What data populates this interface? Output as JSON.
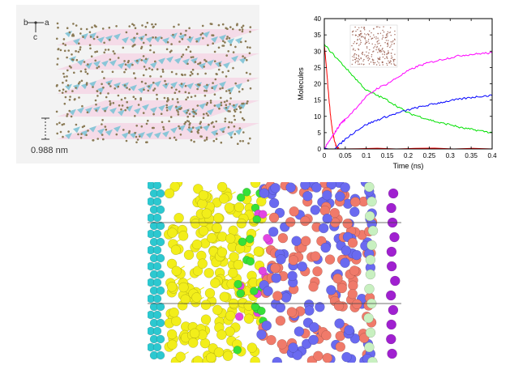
{
  "figure": {
    "panel_a": {
      "axis_labels": {
        "b": "b",
        "a": "a",
        "c": "c"
      },
      "scale_label": "0.988 nm",
      "layer_color": "#7ec3d6",
      "sheet_color": "#f5c6df",
      "atom_color": "#8a7a55"
    },
    "panel_b": {
      "inset_color": "#a0685a"
    },
    "panel_c": {
      "colors": {
        "cyan": "#2cc8d0",
        "yellow": "#f2ee1a",
        "green": "#36e038",
        "magenta": "#e246e2",
        "salmon": "#f07a6a",
        "blue": "#6a6af0",
        "pale_green": "#c8f0c0",
        "purple": "#a020d0"
      }
    }
  },
  "chart_data": {
    "type": "line",
    "xlabel": "Time (ns)",
    "ylabel": "Molecules",
    "xlim": [
      0,
      0.4
    ],
    "ylim": [
      0,
      40
    ],
    "x_ticks": [
      "0",
      "0.05",
      "0.1",
      "0.15",
      "0.2",
      "0.25",
      "0.3",
      "0.35",
      "0.4"
    ],
    "y_ticks": [
      "0",
      "5",
      "10",
      "15",
      "20",
      "25",
      "30",
      "35",
      "40"
    ],
    "series": [
      {
        "color": "#ff0000",
        "x": [
          0,
          0.005,
          0.01,
          0.015,
          0.02,
          0.025,
          0.03,
          0.035,
          0.4
        ],
        "y": [
          32,
          25,
          17,
          10,
          5,
          2,
          0.5,
          0,
          0
        ]
      },
      {
        "color": "#00e000",
        "x": [
          0,
          0.025,
          0.05,
          0.075,
          0.1,
          0.125,
          0.15,
          0.175,
          0.2,
          0.225,
          0.25,
          0.275,
          0.3,
          0.325,
          0.35,
          0.375,
          0.4
        ],
        "y": [
          32,
          28.5,
          25,
          21.5,
          18,
          16.5,
          15,
          13,
          11,
          10,
          9,
          8,
          7.5,
          6.5,
          6,
          5.5,
          5
        ]
      },
      {
        "color": "#ff00ff",
        "x": [
          0,
          0.01,
          0.02,
          0.03,
          0.04,
          0.05,
          0.075,
          0.1,
          0.125,
          0.15,
          0.175,
          0.2,
          0.225,
          0.25,
          0.275,
          0.3,
          0.325,
          0.35,
          0.375,
          0.4
        ],
        "y": [
          0,
          2,
          4,
          6,
          8,
          9,
          12.5,
          16,
          18.5,
          20,
          22,
          24,
          25.5,
          26.5,
          27.3,
          28,
          28.7,
          29,
          29.3,
          29.5
        ]
      },
      {
        "color": "#0000ff",
        "x": [
          0,
          0.025,
          0.05,
          0.075,
          0.1,
          0.125,
          0.15,
          0.175,
          0.2,
          0.225,
          0.25,
          0.275,
          0.3,
          0.325,
          0.35,
          0.375,
          0.4
        ],
        "y": [
          0,
          0,
          3,
          5.5,
          7.5,
          8.8,
          10,
          11,
          12,
          12.8,
          13.5,
          14.2,
          14.8,
          15.3,
          15.8,
          16.2,
          16.4
        ]
      }
    ]
  }
}
